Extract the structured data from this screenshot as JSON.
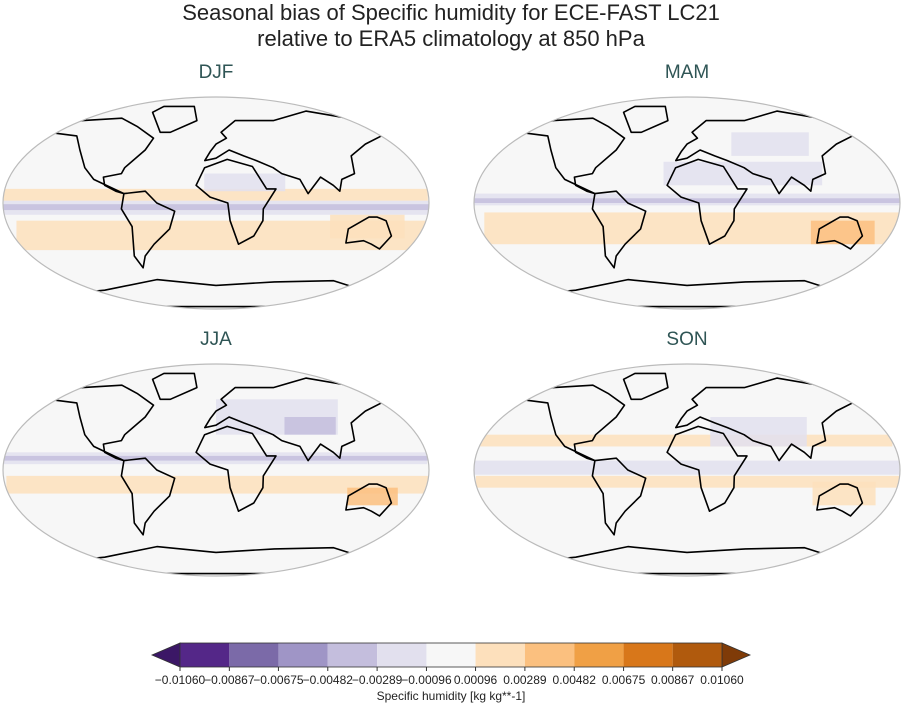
{
  "title": "Seasonal bias of Specific humidity for ECE-FAST LC21",
  "subtitle": "relative to ERA5 climatology at 850 hPa",
  "panels": [
    {
      "title": "DJF"
    },
    {
      "title": "MAM"
    },
    {
      "title": "JJA"
    },
    {
      "title": "SON"
    }
  ],
  "colorbar": {
    "label": "Specific humidity [kg kg**-1]",
    "ticks": [
      {
        "value": -0.0106,
        "label": "−0.01060"
      },
      {
        "value": -0.00867,
        "label": "−0.00867"
      },
      {
        "value": -0.00675,
        "label": "−0.00675"
      },
      {
        "value": -0.00482,
        "label": "−0.00482"
      },
      {
        "value": -0.00289,
        "label": "−0.00289"
      },
      {
        "value": -0.00096,
        "label": "−0.00096"
      },
      {
        "value": 0.00096,
        "label": "0.00096"
      },
      {
        "value": 0.00289,
        "label": "0.00289"
      },
      {
        "value": 0.00482,
        "label": "0.00482"
      },
      {
        "value": 0.00675,
        "label": "0.00675"
      },
      {
        "value": 0.00867,
        "label": "0.00867"
      },
      {
        "value": 0.0106,
        "label": "0.01060"
      }
    ],
    "colors": [
      "#542788",
      "#7b6aa8",
      "#9f95c6",
      "#c4bedd",
      "#e2e0ee",
      "#f7f7f7",
      "#fde0bc",
      "#fbc07f",
      "#f0a045",
      "#d8771a",
      "#b05a0d"
    ],
    "extend_colors": [
      "#3b1766",
      "#7f3b08"
    ]
  }
}
